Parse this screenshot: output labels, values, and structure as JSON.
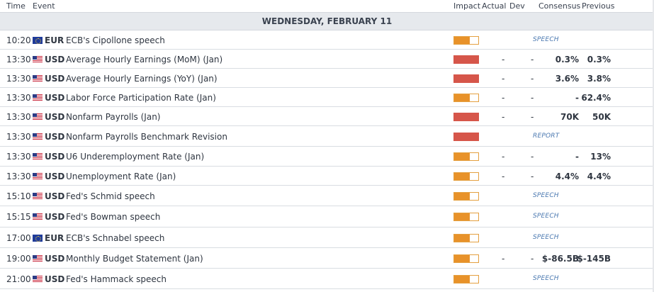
{
  "header": {
    "time": "Time",
    "event": "Event",
    "impact": "Impact",
    "actual": "Actual",
    "dev": "Dev",
    "consensus": "Consensus",
    "previous": "Previous"
  },
  "date_label": "WEDNESDAY, FEBRUARY 11",
  "colors": {
    "high_impact": "#d6564a",
    "medium_impact": "#e8922a",
    "tag_text": "#4a78b0"
  },
  "rows": [
    {
      "time": "10:20",
      "currency": "EUR",
      "flag": "eu-flag-icon",
      "event": "ECB's Cipollone speech",
      "impact": "medium",
      "tag": "SPEECH"
    },
    {
      "time": "13:30",
      "currency": "USD",
      "flag": "us-flag-icon",
      "event": "Average Hourly Earnings (MoM) (Jan)",
      "impact": "high",
      "actual": "-",
      "dev": "-",
      "consensus": "0.3%",
      "previous": "0.3%"
    },
    {
      "time": "13:30",
      "currency": "USD",
      "flag": "us-flag-icon",
      "event": "Average Hourly Earnings (YoY) (Jan)",
      "impact": "high",
      "actual": "-",
      "dev": "-",
      "consensus": "3.6%",
      "previous": "3.8%"
    },
    {
      "time": "13:30",
      "currency": "USD",
      "flag": "us-flag-icon",
      "event": "Labor Force Participation Rate (Jan)",
      "impact": "medium",
      "actual": "-",
      "dev": "-",
      "consensus": "-",
      "previous": "62.4%"
    },
    {
      "time": "13:30",
      "currency": "USD",
      "flag": "us-flag-icon",
      "event": "Nonfarm Payrolls (Jan)",
      "impact": "high",
      "actual": "-",
      "dev": "-",
      "consensus": "70K",
      "previous": "50K"
    },
    {
      "time": "13:30",
      "currency": "USD",
      "flag": "us-flag-icon",
      "event": "Nonfarm Payrolls Benchmark Revision",
      "impact": "high",
      "tag": "REPORT"
    },
    {
      "time": "13:30",
      "currency": "USD",
      "flag": "us-flag-icon",
      "event": "U6 Underemployment Rate (Jan)",
      "impact": "medium",
      "actual": "-",
      "dev": "-",
      "consensus": "-",
      "previous": "13%"
    },
    {
      "time": "13:30",
      "currency": "USD",
      "flag": "us-flag-icon",
      "event": "Unemployment Rate (Jan)",
      "impact": "medium",
      "actual": "-",
      "dev": "-",
      "consensus": "4.4%",
      "previous": "4.4%"
    },
    {
      "time": "15:10",
      "currency": "USD",
      "flag": "us-flag-icon",
      "event": "Fed's Schmid speech",
      "impact": "medium",
      "tag": "SPEECH"
    },
    {
      "time": "15:15",
      "currency": "USD",
      "flag": "us-flag-icon",
      "event": "Fed's Bowman speech",
      "impact": "medium",
      "tag": "SPEECH"
    },
    {
      "time": "17:00",
      "currency": "EUR",
      "flag": "eu-flag-icon",
      "event": "ECB's Schnabel speech",
      "impact": "medium",
      "tag": "SPEECH"
    },
    {
      "time": "19:00",
      "currency": "USD",
      "flag": "us-flag-icon",
      "event": "Monthly Budget Statement (Jan)",
      "impact": "medium",
      "actual": "-",
      "dev": "-",
      "consensus": "$-86.5B",
      "previous": "$-145B"
    },
    {
      "time": "21:00",
      "currency": "USD",
      "flag": "us-flag-icon",
      "event": "Fed's Hammack speech",
      "impact": "medium",
      "tag": "SPEECH"
    }
  ]
}
